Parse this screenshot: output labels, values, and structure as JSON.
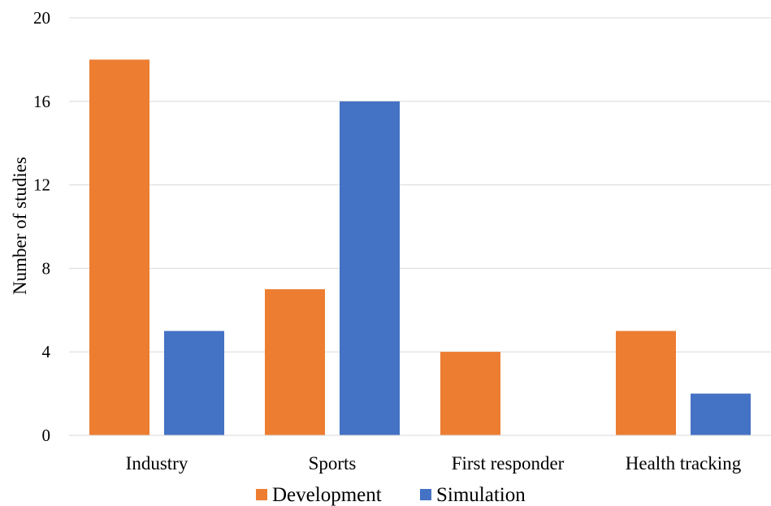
{
  "chart_data": {
    "type": "bar",
    "title": "",
    "xlabel": "",
    "ylabel": "Number of studies",
    "ylim": [
      0,
      20
    ],
    "yticks": [
      0,
      4,
      8,
      12,
      16,
      20
    ],
    "categories": [
      "Industry",
      "Sports",
      "First responder",
      "Health tracking"
    ],
    "series": [
      {
        "name": "Development",
        "color": "#ed7d31",
        "values": [
          18,
          7,
          4,
          5
        ]
      },
      {
        "name": "Simulation",
        "color": "#4472c4",
        "values": [
          5,
          16,
          0,
          2
        ]
      }
    ],
    "grid": true,
    "legend_position": "bottom"
  }
}
